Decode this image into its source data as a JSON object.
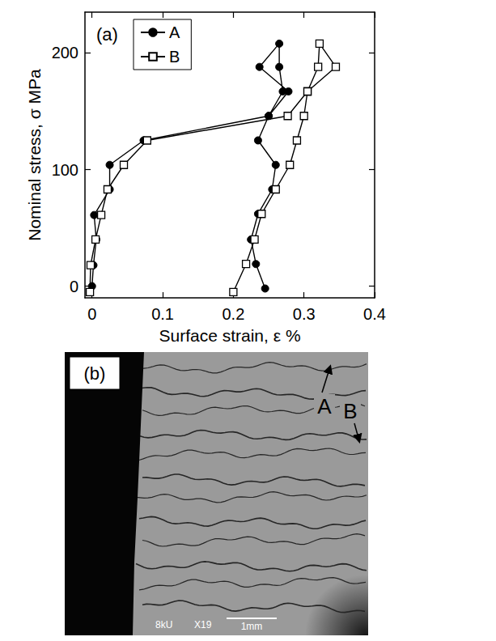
{
  "chart_data": {
    "type": "line",
    "title": "(a)",
    "x_label": "Surface strain, ε %",
    "y_label": "Nominal stress, σ MPa",
    "xlim": [
      -0.01,
      0.4
    ],
    "xticks": [
      0,
      0.1,
      0.2,
      0.3,
      0.4
    ],
    "ylim": [
      -10,
      235
    ],
    "yticks": [
      0,
      100,
      200
    ],
    "grid": false,
    "legend": "upper left",
    "series": [
      {
        "name": "A",
        "color": "#000000",
        "marker": "circle",
        "line_style": "solid",
        "x": [
          0.0,
          0.002,
          0.006,
          0.003,
          0.025,
          0.025,
          0.073,
          0.25,
          0.27,
          0.265,
          0.265,
          0.237,
          0.278,
          0.25,
          0.235,
          0.26,
          0.255,
          0.235,
          0.225,
          0.232,
          0.245
        ],
        "values": [
          0,
          18,
          40,
          61,
          83,
          104,
          125,
          146,
          167,
          188,
          208,
          188,
          167,
          146,
          125,
          104,
          83,
          62,
          40,
          19,
          -2
        ]
      },
      {
        "name": "B",
        "color": "#000000",
        "marker": "open_square",
        "line_style": "solid",
        "x": [
          -0.003,
          -0.002,
          0.005,
          0.013,
          0.022,
          0.045,
          0.078,
          0.277,
          0.305,
          0.32,
          0.322,
          0.345,
          0.305,
          0.3,
          0.29,
          0.28,
          0.26,
          0.24,
          0.23,
          0.218,
          0.2
        ],
        "values": [
          -5,
          18,
          40,
          61,
          83,
          104,
          125,
          146,
          167,
          188,
          208,
          188,
          167,
          146,
          125,
          104,
          83,
          62,
          40,
          19,
          -5
        ]
      }
    ]
  },
  "micrograph": {
    "label": "(b)",
    "annotations": [
      "A",
      "B"
    ],
    "info": [
      "8kU",
      "X19"
    ],
    "scale_bar": "1mm"
  }
}
